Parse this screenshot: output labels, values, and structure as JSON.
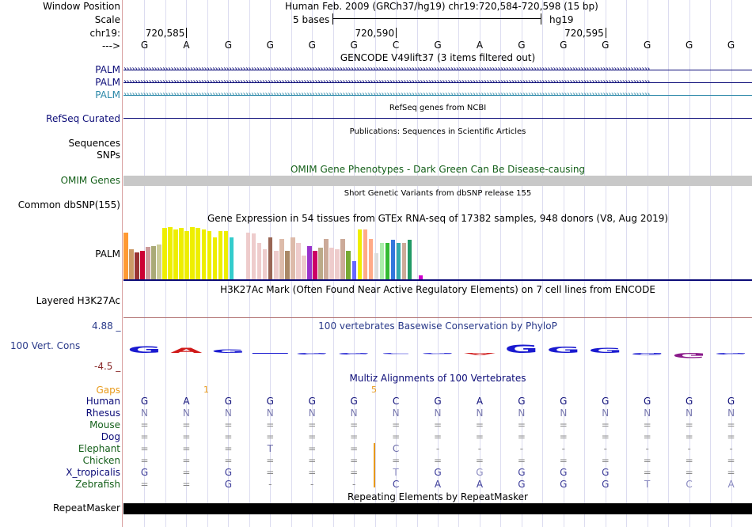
{
  "header": {
    "window_position_label": "Window Position",
    "window_position_value": "Human Feb. 2009 (GRCh37/hg19)   chr19:720,584-720,598 (15 bp)",
    "scale_label": "Scale",
    "scale_bases": "5 bases",
    "scale_assembly": "hg19",
    "chrom_label": "chr19:",
    "strand_label": "--->",
    "coord_ticks": [
      "720,585",
      "720,590",
      "720,595"
    ]
  },
  "sequence": [
    "G",
    "A",
    "G",
    "G",
    "G",
    "G",
    "C",
    "G",
    "A",
    "G",
    "G",
    "G",
    "G",
    "G",
    "G"
  ],
  "tracks": {
    "gencode": {
      "title": "GENCODE V49lift37 (3 items filtered out)",
      "items": [
        {
          "name": "PALM",
          "color": "#0c0c78"
        },
        {
          "name": "PALM",
          "color": "#0c0c78"
        },
        {
          "name": "PALM",
          "color": "#2b88a8"
        }
      ]
    },
    "refseq": {
      "title": "RefSeq genes from NCBI",
      "label": "RefSeq Curated",
      "color": "#0c0c78"
    },
    "publications": {
      "title": "Publications: Sequences in Scientific Articles",
      "labels": [
        "Sequences",
        "SNPs"
      ]
    },
    "omim": {
      "title": "OMIM Gene Phenotypes - Dark Green Can Be Disease-causing",
      "label": "OMIM Genes",
      "color": "#15601a"
    },
    "dbsnp": {
      "title": "Short Genetic Variants from dbSNP release 155",
      "label": "Common dbSNP(155)"
    },
    "gtex": {
      "title": "Gene Expression in 54 tissues from GTEx RNA-seq of 17382 samples, 948 donors (V8, Aug 2019)",
      "label": "PALM",
      "bars": [
        {
          "v": 0.9,
          "c": "#ff9933"
        },
        {
          "v": 0.58,
          "c": "#cc9966"
        },
        {
          "v": 0.52,
          "c": "#993333"
        },
        {
          "v": 0.55,
          "c": "#cc0033"
        },
        {
          "v": 0.62,
          "c": "#cc9999"
        },
        {
          "v": 0.63,
          "c": "#aaaa77"
        },
        {
          "v": 0.67,
          "c": "#cccc99"
        },
        {
          "v": 0.98,
          "c": "#eeee00"
        },
        {
          "v": 1.0,
          "c": "#eeee00"
        },
        {
          "v": 0.96,
          "c": "#eeee00"
        },
        {
          "v": 0.98,
          "c": "#eeee00"
        },
        {
          "v": 0.93,
          "c": "#eeee00"
        },
        {
          "v": 1.0,
          "c": "#eeee00"
        },
        {
          "v": 0.98,
          "c": "#eeee00"
        },
        {
          "v": 0.96,
          "c": "#eeee00"
        },
        {
          "v": 0.93,
          "c": "#eeee00"
        },
        {
          "v": 0.8,
          "c": "#eeee00"
        },
        {
          "v": 0.93,
          "c": "#eeee00"
        },
        {
          "v": 0.92,
          "c": "#eeee00"
        },
        {
          "v": 0.8,
          "c": "#33cccc"
        },
        {
          "v": 0.0,
          "c": "#ffffff"
        },
        {
          "v": 0.0,
          "c": "#ffffff"
        },
        {
          "v": 0.9,
          "c": "#eecccc"
        },
        {
          "v": 0.88,
          "c": "#eecccc"
        },
        {
          "v": 0.7,
          "c": "#eecccc"
        },
        {
          "v": 0.57,
          "c": "#eecccc"
        },
        {
          "v": 0.8,
          "c": "#996655"
        },
        {
          "v": 0.55,
          "c": "#eecccc"
        },
        {
          "v": 0.78,
          "c": "#ddbbaa"
        },
        {
          "v": 0.55,
          "c": "#aa8866"
        },
        {
          "v": 0.8,
          "c": "#ddbbaa"
        },
        {
          "v": 0.7,
          "c": "#eecccc"
        },
        {
          "v": 0.45,
          "c": "#eecccc"
        },
        {
          "v": 0.63,
          "c": "#9933cc"
        },
        {
          "v": 0.55,
          "c": "#cc0066"
        },
        {
          "v": 0.6,
          "c": "#bbaa88"
        },
        {
          "v": 0.78,
          "c": "#ccaa99"
        },
        {
          "v": 0.6,
          "c": "#eecccc"
        },
        {
          "v": 0.57,
          "c": "#eecccc"
        },
        {
          "v": 0.78,
          "c": "#ccaa99"
        },
        {
          "v": 0.55,
          "c": "#77aa33"
        },
        {
          "v": 0.35,
          "c": "#6666ff"
        },
        {
          "v": 0.95,
          "c": "#eeee00"
        },
        {
          "v": 0.95,
          "c": "#ffaa88"
        },
        {
          "v": 0.78,
          "c": "#ffaa88"
        },
        {
          "v": 0.5,
          "c": "#dddddd"
        },
        {
          "v": 0.7,
          "c": "#aaeeaa"
        },
        {
          "v": 0.7,
          "c": "#33bb33"
        },
        {
          "v": 0.75,
          "c": "#3377dd"
        },
        {
          "v": 0.7,
          "c": "#33aaaa"
        },
        {
          "v": 0.7,
          "c": "#ccaa99"
        },
        {
          "v": 0.75,
          "c": "#229966"
        },
        {
          "v": 0.0,
          "c": "#ffffff"
        },
        {
          "v": 0.08,
          "c": "#cc00cc"
        }
      ]
    },
    "h3k27ac": {
      "title": "H3K27Ac Mark (Often Found Near Active Regulatory Elements) on 7 cell lines from ENCODE",
      "label": "Layered H3K27Ac"
    },
    "phylop": {
      "title": "100 vertebrates Basewise Conservation by PhyloP",
      "label": "100 Vert. Cons",
      "max_label": "4.88 _",
      "min_label": "-4.5 _",
      "values": [
        1.6,
        1.2,
        0.9,
        0.0,
        -0.3,
        -0.3,
        -0.2,
        -0.2,
        -0.4,
        2.0,
        1.5,
        1.3,
        -0.5,
        -1.2,
        -0.3
      ]
    },
    "multiz": {
      "title": "Multiz Alignments of 100 Vertebrates",
      "gaps_label": "Gaps",
      "gaps_values": [
        "1",
        "5"
      ],
      "species": [
        {
          "name": "Human",
          "color": "#0c0c78",
          "bases": [
            "G",
            "A",
            "G",
            "G",
            "G",
            "G",
            "C",
            "G",
            "A",
            "G",
            "G",
            "G",
            "G",
            "G",
            "G"
          ]
        },
        {
          "name": "Rhesus",
          "color": "#0c0c78",
          "bases": [
            "N",
            "N",
            "N",
            "N",
            "N",
            "N",
            "N",
            "N",
            "N",
            "N",
            "N",
            "N",
            "N",
            "N",
            "N"
          ]
        },
        {
          "name": "Mouse",
          "color": "#15601a",
          "bases": [
            "=",
            "=",
            "=",
            "=",
            "=",
            "=",
            "=",
            "=",
            "=",
            "=",
            "=",
            "=",
            "=",
            "=",
            "="
          ]
        },
        {
          "name": "Dog",
          "color": "#0c0c78",
          "bases": [
            "=",
            "=",
            "=",
            "=",
            "=",
            "=",
            "=",
            "=",
            "=",
            "=",
            "=",
            "=",
            "=",
            "=",
            "="
          ]
        },
        {
          "name": "Elephant",
          "color": "#15601a",
          "bases": [
            "=",
            "=",
            "=",
            "T",
            "=",
            "=",
            "C",
            "-",
            "-",
            "-",
            "-",
            "-",
            "-",
            "-",
            "-"
          ]
        },
        {
          "name": "Chicken",
          "color": "#15601a",
          "bases": [
            "=",
            "=",
            "=",
            "=",
            "=",
            "=",
            "=",
            "=",
            "=",
            "=",
            "=",
            "=",
            "=",
            "=",
            "="
          ]
        },
        {
          "name": "X_tropicalis",
          "color": "#0c0c78",
          "bases": [
            "G",
            "=",
            "G",
            "=",
            "=",
            "=",
            "T",
            "G",
            "G",
            "G",
            "G",
            "G",
            "=",
            "=",
            "="
          ]
        },
        {
          "name": "Zebrafish",
          "color": "#15601a",
          "bases": [
            "=",
            "=",
            "G",
            "-",
            "-",
            "-",
            "C",
            "A",
            "A",
            "G",
            "G",
            "G",
            "T",
            "C",
            "A"
          ]
        }
      ]
    },
    "repeatmasker": {
      "title": "Repeating Elements by RepeatMasker",
      "label": "RepeatMasker"
    }
  }
}
